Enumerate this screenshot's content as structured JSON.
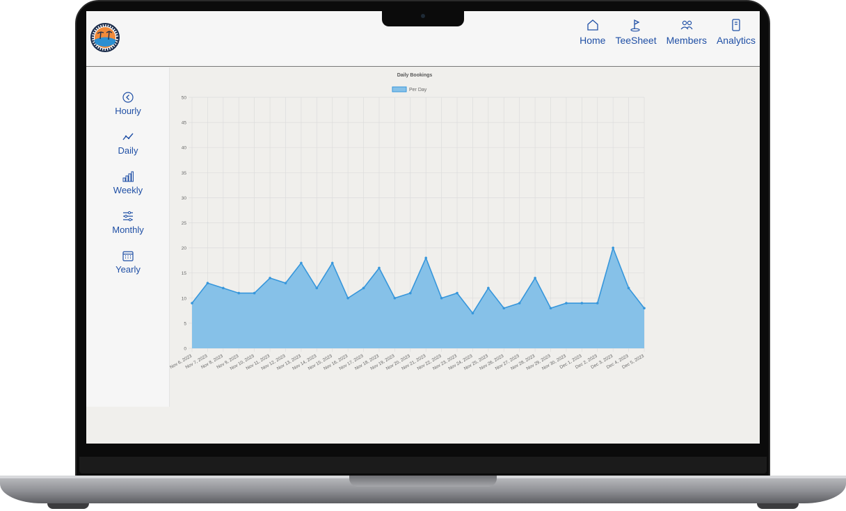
{
  "nav": {
    "home": "Home",
    "teesheet": "TeeSheet",
    "members": "Members",
    "analytics": "Analytics"
  },
  "sidebar": {
    "items": [
      {
        "label": "Hourly",
        "icon": "chevron-left-circle-icon"
      },
      {
        "label": "Daily",
        "icon": "trend-line-icon"
      },
      {
        "label": "Weekly",
        "icon": "bar-chart-icon"
      },
      {
        "label": "Monthly",
        "icon": "sliders-icon"
      },
      {
        "label": "Yearly",
        "icon": "calendar-icon"
      }
    ]
  },
  "colors": {
    "accent": "#1f4fa5",
    "series_fill": "#86c1e8",
    "series_line": "#3696db"
  },
  "chart_data": {
    "type": "area",
    "title": "Daily Bookings",
    "legend": "top-center",
    "grid": true,
    "ylim": [
      0,
      50
    ],
    "yticks": [
      0,
      5,
      10,
      15,
      20,
      25,
      30,
      35,
      40,
      45,
      50
    ],
    "categories": [
      "Nov 6, 2023",
      "Nov 7, 2023",
      "Nov 8, 2023",
      "Nov 9, 2023",
      "Nov 10, 2023",
      "Nov 11, 2023",
      "Nov 12, 2023",
      "Nov 13, 2023",
      "Nov 14, 2023",
      "Nov 15, 2023",
      "Nov 16, 2023",
      "Nov 17, 2023",
      "Nov 18, 2023",
      "Nov 19, 2023",
      "Nov 20, 2023",
      "Nov 21, 2023",
      "Nov 22, 2023",
      "Nov 23, 2023",
      "Nov 24, 2023",
      "Nov 25, 2023",
      "Nov 26, 2023",
      "Nov 27, 2023",
      "Nov 28, 2023",
      "Nov 29, 2023",
      "Nov 30, 2023",
      "Dec 1, 2023",
      "Dec 2, 2023",
      "Dec 3, 2023",
      "Dec 4, 2023",
      "Dec 5, 2023"
    ],
    "series": [
      {
        "name": "Per Day",
        "values": [
          9,
          13,
          12,
          11,
          11,
          14,
          13,
          17,
          12,
          17,
          10,
          12,
          16,
          10,
          11,
          18,
          10,
          11,
          7,
          12,
          8,
          9,
          14,
          8,
          9,
          9,
          9,
          20,
          12,
          8
        ]
      }
    ]
  }
}
